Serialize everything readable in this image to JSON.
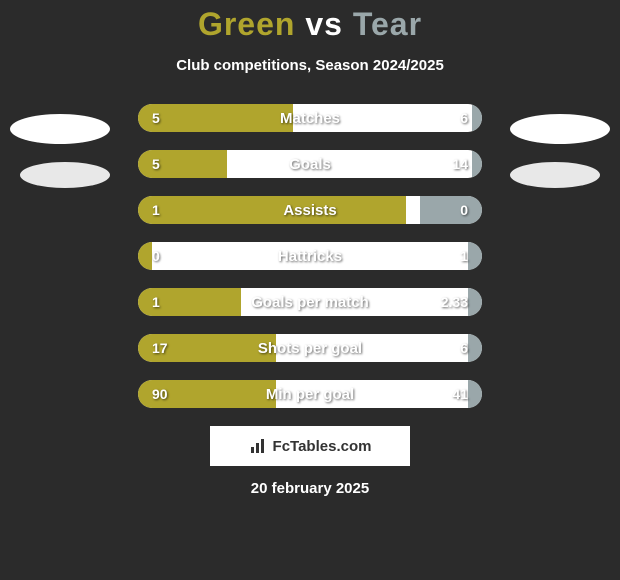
{
  "title": {
    "player1": "Green",
    "vs": "vs",
    "player2": "Tear",
    "color1": "#b0a52d",
    "vs_color": "#ffffff",
    "color2": "#9aa7aa"
  },
  "subtitle": "Club competitions, Season 2024/2025",
  "colors": {
    "left_fill": "#b0a52d",
    "right_fill": "#9aa7aa",
    "bar_bg": "#ffffff",
    "page_bg": "#2b2b2b"
  },
  "bars": [
    {
      "label": "Matches",
      "left_val": "5",
      "right_val": "6",
      "left_pct": 45,
      "right_pct": 3
    },
    {
      "label": "Goals",
      "left_val": "5",
      "right_val": "14",
      "left_pct": 26,
      "right_pct": 3
    },
    {
      "label": "Assists",
      "left_val": "1",
      "right_val": "0",
      "left_pct": 78,
      "right_pct": 18
    },
    {
      "label": "Hattricks",
      "left_val": "0",
      "right_val": "1",
      "left_pct": 4,
      "right_pct": 4
    },
    {
      "label": "Goals per match",
      "left_val": "1",
      "right_val": "2.33",
      "left_pct": 30,
      "right_pct": 4
    },
    {
      "label": "Shots per goal",
      "left_val": "17",
      "right_val": "6",
      "left_pct": 40,
      "right_pct": 4
    },
    {
      "label": "Min per goal",
      "left_val": "90",
      "right_val": "41",
      "left_pct": 40,
      "right_pct": 4
    }
  ],
  "watermark": "FcTables.com",
  "date": "20 february 2025"
}
